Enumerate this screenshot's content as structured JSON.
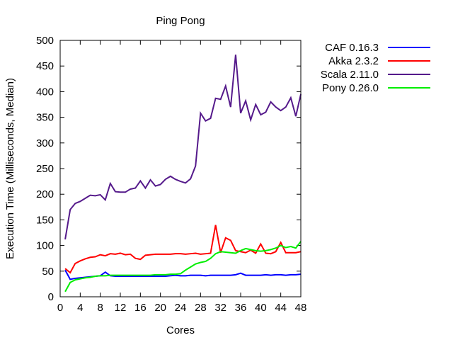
{
  "chart_data": {
    "type": "line",
    "title": "Ping Pong",
    "xlabel": "Cores",
    "ylabel": "Execution Time (Milliseconds, Median)",
    "xlim": [
      0,
      48
    ],
    "ylim": [
      0,
      500
    ],
    "xticks": [
      0,
      4,
      8,
      12,
      16,
      20,
      24,
      28,
      32,
      36,
      40,
      44,
      48
    ],
    "yticks": [
      0,
      50,
      100,
      150,
      200,
      250,
      300,
      350,
      400,
      450,
      500
    ],
    "legend_position": "outside-top-right",
    "x": [
      1,
      2,
      3,
      4,
      5,
      6,
      7,
      8,
      9,
      10,
      11,
      12,
      13,
      14,
      15,
      16,
      17,
      18,
      19,
      20,
      21,
      22,
      23,
      24,
      25,
      26,
      27,
      28,
      29,
      30,
      31,
      32,
      33,
      34,
      35,
      36,
      37,
      38,
      39,
      40,
      41,
      42,
      43,
      44,
      45,
      46,
      47,
      48
    ],
    "series": [
      {
        "name": "CAF 0.16.3",
        "color": "#0000ff",
        "values": [
          52,
          34,
          36,
          37,
          38,
          39,
          40,
          41,
          48,
          41,
          40,
          40,
          40,
          40,
          40,
          40,
          40,
          40,
          40,
          40,
          40,
          41,
          42,
          41,
          41,
          42,
          42,
          42,
          41,
          42,
          42,
          42,
          42,
          42,
          43,
          46,
          42,
          42,
          42,
          42,
          43,
          42,
          43,
          43,
          42,
          43,
          43,
          44
        ]
      },
      {
        "name": "Akka 2.3.2",
        "color": "#ff0000",
        "values": [
          55,
          47,
          65,
          70,
          74,
          77,
          78,
          82,
          80,
          84,
          83,
          85,
          82,
          83,
          75,
          73,
          81,
          82,
          83,
          83,
          83,
          83,
          84,
          84,
          83,
          84,
          85,
          83,
          84,
          85,
          140,
          86,
          115,
          110,
          90,
          88,
          86,
          91,
          85,
          103,
          85,
          84,
          88,
          106,
          86,
          86,
          86,
          88
        ]
      },
      {
        "name": "Scala 2.11.0",
        "color": "#551a8b",
        "values": [
          112,
          170,
          182,
          186,
          192,
          198,
          197,
          199,
          189,
          221,
          205,
          204,
          204,
          210,
          212,
          226,
          212,
          228,
          216,
          219,
          229,
          235,
          229,
          225,
          222,
          230,
          255,
          358,
          343,
          348,
          387,
          385,
          411,
          370,
          472,
          358,
          382,
          345,
          375,
          355,
          360,
          380,
          370,
          363,
          370,
          388,
          352,
          395
        ]
      },
      {
        "name": "Pony 0.26.0",
        "color": "#00ee00",
        "values": [
          10,
          28,
          33,
          35,
          37,
          38,
          40,
          41,
          41,
          42,
          42,
          42,
          42,
          42,
          42,
          42,
          42,
          42,
          43,
          43,
          43,
          44,
          44,
          45,
          52,
          58,
          64,
          67,
          69,
          75,
          84,
          88,
          87,
          86,
          85,
          90,
          94,
          92,
          90,
          89,
          90,
          92,
          95,
          100,
          96,
          98,
          95,
          108
        ]
      }
    ]
  }
}
